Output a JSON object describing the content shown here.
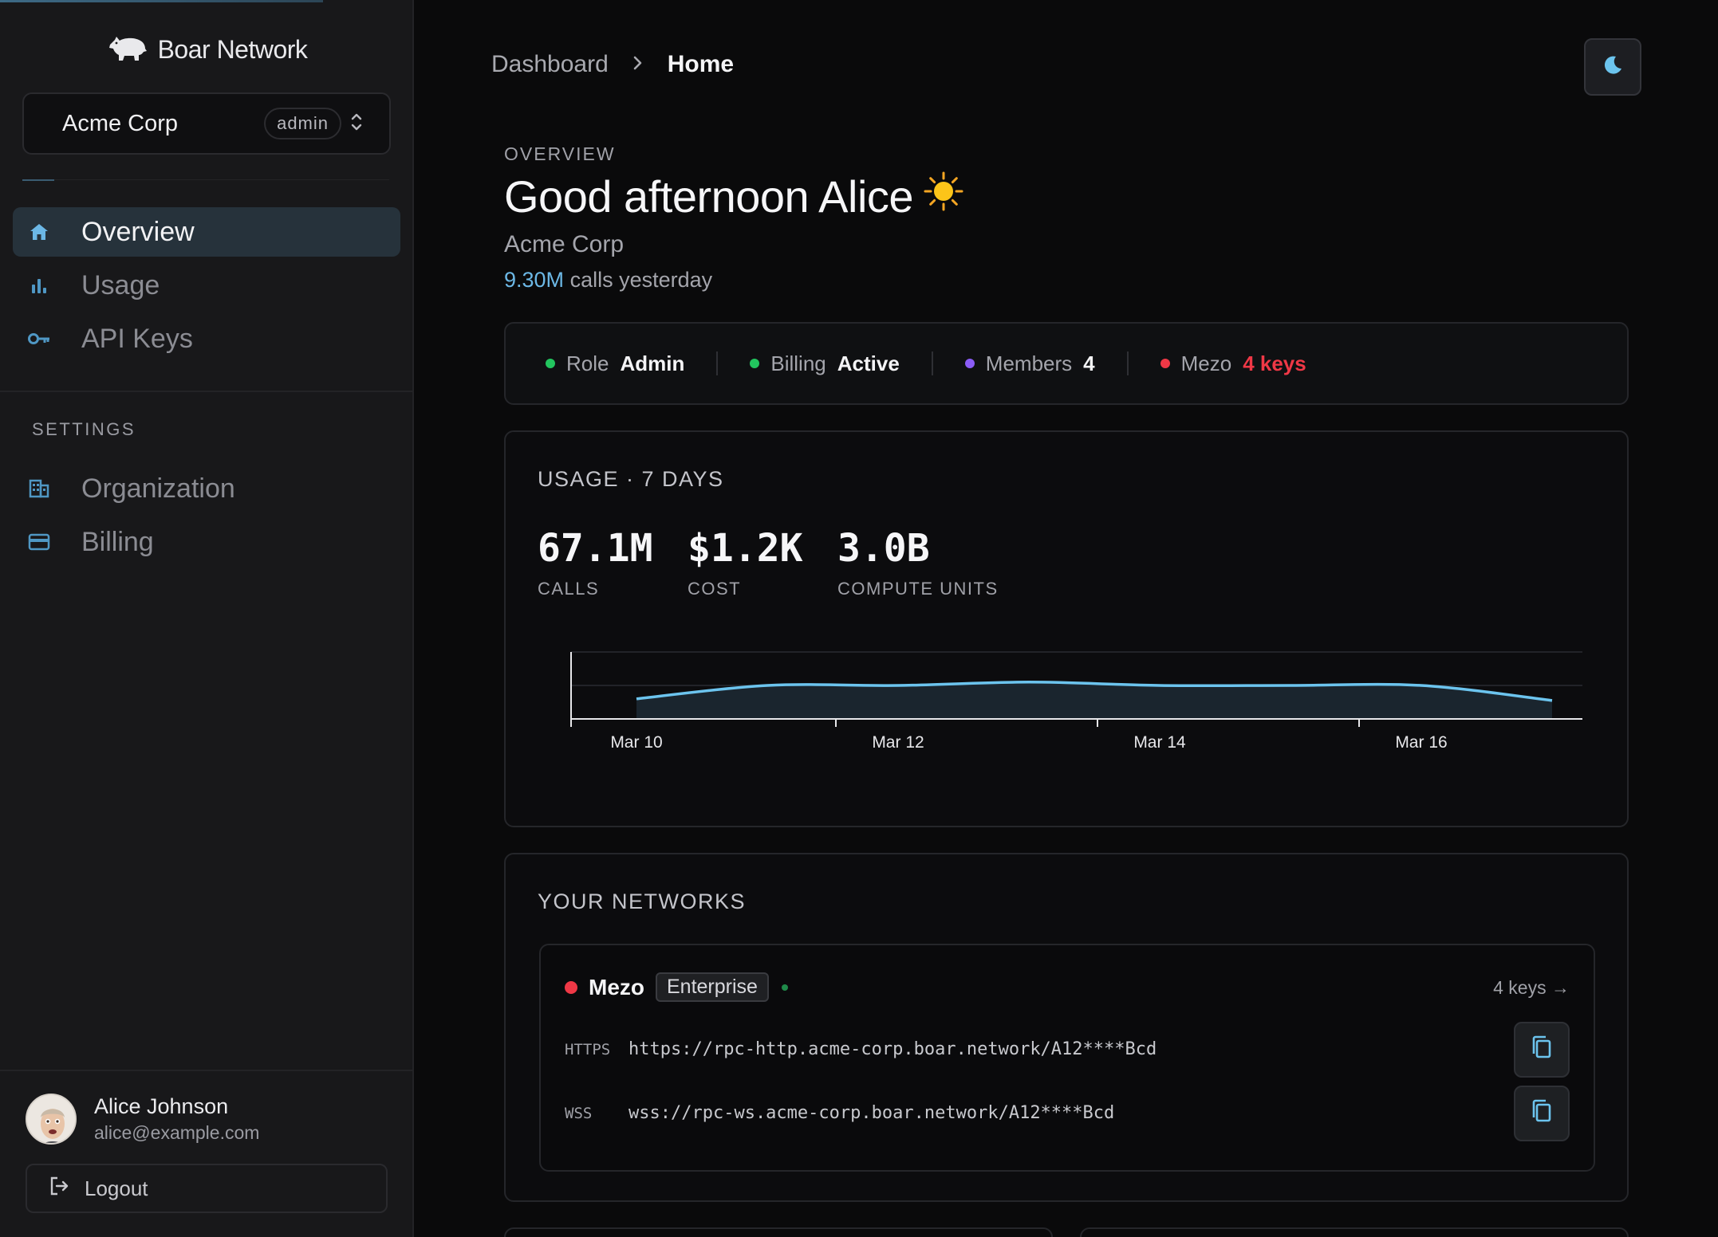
{
  "brand": {
    "name": "Boar Network"
  },
  "org_switcher": {
    "name": "Acme Corp",
    "role": "admin"
  },
  "nav": {
    "items": [
      {
        "label": "Overview",
        "icon": "home-icon",
        "active": true
      },
      {
        "label": "Usage",
        "icon": "bar-chart-icon",
        "active": false
      },
      {
        "label": "API Keys",
        "icon": "key-icon",
        "active": false
      }
    ],
    "settings_heading": "SETTINGS",
    "settings_items": [
      {
        "label": "Organization",
        "icon": "building-icon"
      },
      {
        "label": "Billing",
        "icon": "credit-card-icon"
      }
    ]
  },
  "user": {
    "name": "Alice Johnson",
    "email": "alice@example.com",
    "logout_label": "Logout"
  },
  "breadcrumb": {
    "parent": "Dashboard",
    "current": "Home"
  },
  "header": {
    "eyebrow": "OVERVIEW",
    "greeting": "Good afternoon Alice",
    "org": "Acme Corp",
    "calls_value": "9.30M",
    "calls_suffix": "calls yesterday"
  },
  "status": [
    {
      "label": "Role",
      "value": "Admin",
      "dot_color": "#22c55e",
      "value_color": "#f4f4f6"
    },
    {
      "label": "Billing",
      "value": "Active",
      "dot_color": "#22c55e",
      "value_color": "#f4f4f6"
    },
    {
      "label": "Members",
      "value": "4",
      "dot_color": "#8b5cf6",
      "value_color": "#f4f4f6"
    },
    {
      "label": "Mezo",
      "value": "4 keys",
      "dot_color": "#ef3846",
      "value_color": "#ef3846"
    }
  ],
  "usage": {
    "title": "USAGE · 7 DAYS",
    "metrics": [
      {
        "value": "67.1M",
        "label": "CALLS"
      },
      {
        "value": "$1.2K",
        "label": "COST"
      },
      {
        "value": "3.0B",
        "label": "COMPUTE UNITS"
      }
    ]
  },
  "chart_data": {
    "type": "area",
    "x": [
      "Mar 10",
      "Mar 11",
      "Mar 12",
      "Mar 13",
      "Mar 14",
      "Mar 15",
      "Mar 16",
      "Mar 17"
    ],
    "tick_labels": [
      "Mar 10",
      "Mar 12",
      "Mar 14",
      "Mar 16"
    ],
    "series": [
      {
        "values": [
          0.6,
          1.0,
          1.0,
          1.1,
          1.0,
          1.0,
          1.0,
          0.55
        ]
      }
    ],
    "ylim": [
      0,
      2
    ],
    "grid": true,
    "color": "#6cc4ee"
  },
  "networks": {
    "title": "YOUR NETWORKS",
    "items": [
      {
        "name": "Mezo",
        "tier": "Enterprise",
        "keys_link": "4 keys →",
        "endpoints": [
          {
            "protocol": "HTTPS",
            "url": "https://rpc-http.acme-corp.boar.network/A12****Bcd"
          },
          {
            "protocol": "WSS",
            "url": "wss://rpc-ws.acme-corp.boar.network/A12****Bcd"
          }
        ]
      }
    ]
  },
  "colors": {
    "accent": "#6cb8e6",
    "danger": "#ef3846",
    "success": "#22c55e"
  }
}
